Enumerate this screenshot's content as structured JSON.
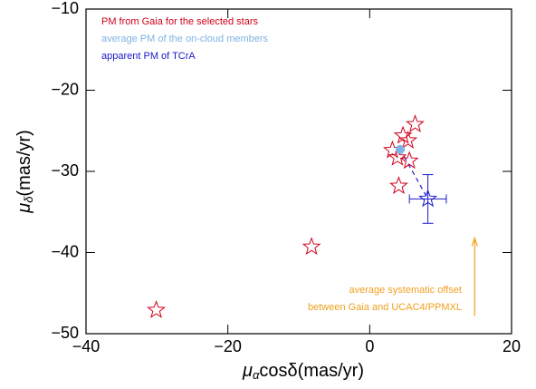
{
  "chart_data": {
    "type": "scatter",
    "xlabel": {
      "symbol": "μ",
      "subscript": "α",
      "rest": "cosδ(mas/yr)"
    },
    "ylabel": {
      "symbol": "μ",
      "subscript": "δ",
      "rest": "(mas/yr)"
    },
    "xlim": [
      -40,
      20
    ],
    "ylim": [
      -50,
      -10
    ],
    "xticks": [
      {
        "value": -40,
        "label": "−40"
      },
      {
        "value": -20,
        "label": "−20"
      },
      0,
      20
    ],
    "yticks": [
      {
        "value": -50,
        "label": "−50"
      },
      {
        "value": -40,
        "label": "−40"
      },
      {
        "value": -30,
        "label": "−30"
      },
      {
        "value": -20,
        "label": "−20"
      },
      {
        "value": -10,
        "label": "−10"
      }
    ],
    "series": [
      {
        "name": "PM from Gaia for the selected stars",
        "color": "#d0021b",
        "marker": "star",
        "x": [
          -30.1,
          -8.2,
          4.1,
          6.4,
          4.7,
          5.4,
          3.2,
          3.9,
          5.6
        ],
        "values": [
          -47.1,
          -39.3,
          -31.8,
          -24.2,
          -25.6,
          -26.2,
          -27.4,
          -28.3,
          -28.7
        ]
      },
      {
        "name": "average PM of the on-cloud members",
        "color": "#7fb2e5",
        "marker": "dot",
        "x": [
          4.3
        ],
        "values": [
          -27.3
        ]
      },
      {
        "name": "apparent PM of TCrA",
        "color": "#1a1acc",
        "marker": "star",
        "x": [
          8.2
        ],
        "values": [
          -33.4
        ],
        "xerr": [
          2.6
        ],
        "yerr": [
          3.0
        ]
      }
    ],
    "offset_arrow": {
      "color": "#f0a020",
      "x": 14.8,
      "y_start": -47.8,
      "y_end": -38.2,
      "label": [
        "average systematic offset",
        "between Gaia and UCAC4/PPMXL"
      ]
    }
  }
}
